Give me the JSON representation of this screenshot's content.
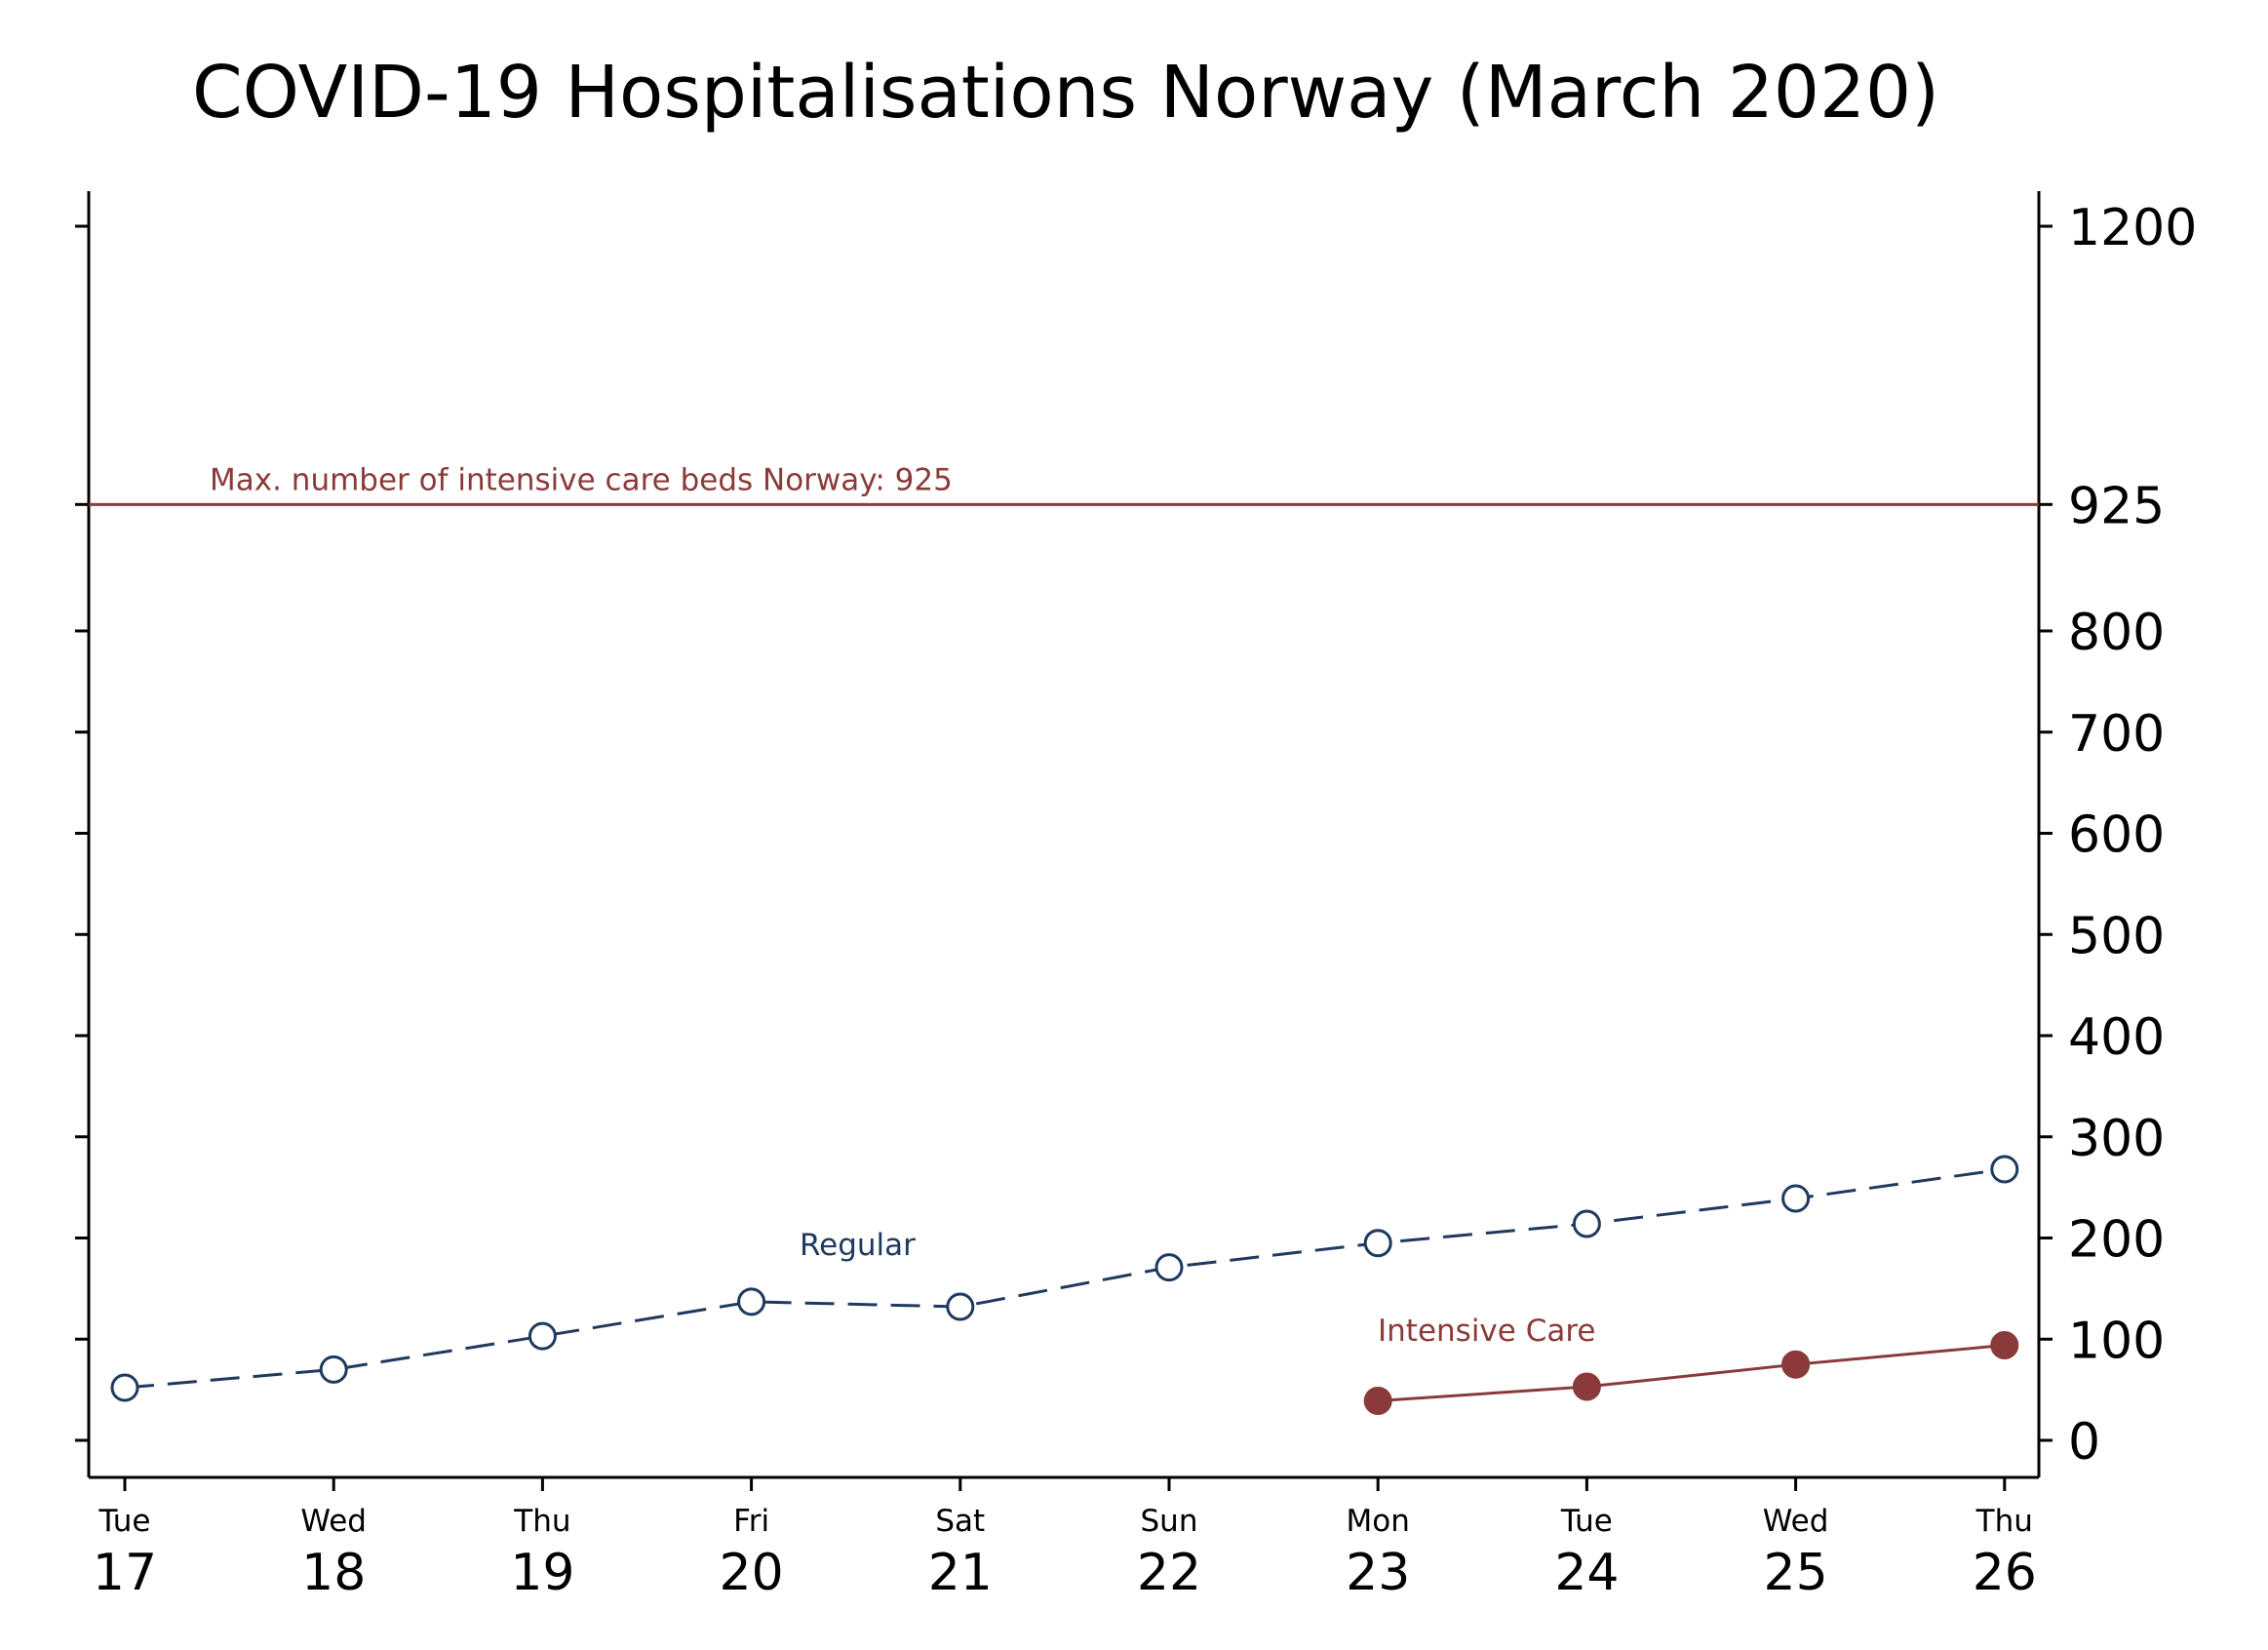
{
  "chart_data": {
    "type": "line",
    "title": "COVID-19 Hospitalisations Norway (March 2020)",
    "xlabel": "",
    "ylabel": "",
    "x_days": [
      "Tue",
      "Wed",
      "Thu",
      "Fri",
      "Sat",
      "Sun",
      "Mon",
      "Tue",
      "Wed",
      "Thu"
    ],
    "x_dates": [
      "17",
      "18",
      "19",
      "20",
      "21",
      "22",
      "23",
      "24",
      "25",
      "26"
    ],
    "ylim": [
      0,
      1200
    ],
    "yticks": [
      0,
      100,
      200,
      300,
      400,
      500,
      600,
      700,
      800,
      925,
      1200
    ],
    "ytick_labels": [
      "0",
      "100",
      "200",
      "300",
      "400",
      "500",
      "600",
      "700",
      "800",
      "925",
      "1200"
    ],
    "y_axis_side": "right",
    "grid": false,
    "series": [
      {
        "name": "Regular",
        "color": "#1f3a5f",
        "line_style": "dashed",
        "marker": "hollow-circle",
        "x": [
          "17",
          "18",
          "19",
          "20",
          "21",
          "22",
          "23",
          "24",
          "25",
          "26"
        ],
        "values": [
          52,
          70,
          103,
          137,
          132,
          171,
          195,
          214,
          239,
          268
        ]
      },
      {
        "name": "Intensive Care",
        "color": "#8b3a3a",
        "line_style": "solid",
        "marker": "filled-circle",
        "x": [
          "23",
          "24",
          "25",
          "26"
        ],
        "values": [
          39,
          53,
          75,
          94
        ]
      }
    ],
    "reference_line": {
      "value": 925,
      "label": "Max. number of intensive care beds Norway: 925",
      "color": "#8b3a3a"
    }
  }
}
